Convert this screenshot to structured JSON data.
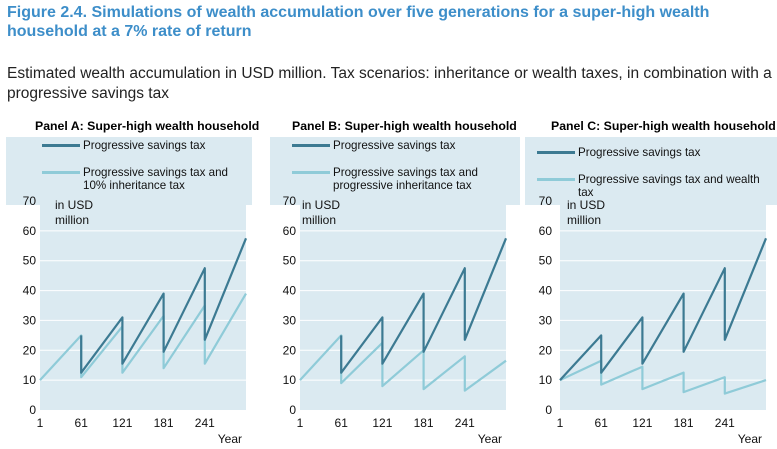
{
  "figure": {
    "title": "Figure 2.4. Simulations of wealth accumulation over five generations for a super-high wealth household at a 7% rate of return",
    "subtitle": "Estimated wealth accumulation in USD million. Tax scenarios: inheritance or wealth taxes, in combination with a progressive savings tax"
  },
  "colors": {
    "dark": "#3c7a92",
    "light": "#8fcbd8",
    "plot_bg": "#dbeaf1",
    "grid": "#ffffff"
  },
  "chart_data": [
    {
      "type": "line",
      "title": "Panel A: Super-high wealth household",
      "unit_label": [
        "in USD",
        "million"
      ],
      "xlabel": "Year",
      "ylim": [
        0,
        70
      ],
      "yticks": [
        0,
        10,
        20,
        30,
        40,
        50,
        60,
        70
      ],
      "xticks": [
        1,
        61,
        121,
        181,
        241
      ],
      "xlim": [
        1,
        301
      ],
      "series": [
        {
          "name": "Progressive savings tax",
          "color": "#3c7a92",
          "points": [
            [
              61,
              25
            ],
            [
              61,
              12.5
            ],
            [
              121,
              31
            ],
            [
              121,
              15.5
            ],
            [
              181,
              39
            ],
            [
              181,
              19.5
            ],
            [
              241,
              47.5
            ],
            [
              241,
              23.5
            ],
            [
              301,
              57.5
            ]
          ]
        },
        {
          "name": "Progressive savings tax and 10% inheritance tax",
          "color": "#8fcbd8",
          "points": [
            [
              1,
              10
            ],
            [
              61,
              25
            ],
            [
              61,
              11
            ],
            [
              121,
              28
            ],
            [
              121,
              12.5
            ],
            [
              181,
              31.5
            ],
            [
              181,
              14
            ],
            [
              241,
              35
            ],
            [
              241,
              15.5
            ],
            [
              301,
              39
            ]
          ]
        }
      ]
    },
    {
      "type": "line",
      "title": "Panel B: Super-high wealth household",
      "unit_label": [
        "in USD",
        "million"
      ],
      "xlabel": "Year",
      "ylim": [
        0,
        70
      ],
      "yticks": [
        0,
        10,
        20,
        30,
        40,
        50,
        60,
        70
      ],
      "xticks": [
        1,
        61,
        121,
        181,
        241
      ],
      "xlim": [
        1,
        301
      ],
      "series": [
        {
          "name": "Progressive savings tax",
          "color": "#3c7a92",
          "points": [
            [
              61,
              25
            ],
            [
              61,
              12.5
            ],
            [
              121,
              31
            ],
            [
              121,
              15.5
            ],
            [
              181,
              39
            ],
            [
              181,
              19.5
            ],
            [
              241,
              47.5
            ],
            [
              241,
              23.5
            ],
            [
              301,
              57.5
            ]
          ]
        },
        {
          "name": "Progressive savings tax and progressive inheritance tax",
          "color": "#8fcbd8",
          "points": [
            [
              1,
              10
            ],
            [
              61,
              25
            ],
            [
              61,
              9
            ],
            [
              121,
              22.5
            ],
            [
              121,
              8
            ],
            [
              181,
              20
            ],
            [
              181,
              7
            ],
            [
              241,
              18
            ],
            [
              241,
              6.5
            ],
            [
              301,
              16.5
            ]
          ]
        }
      ]
    },
    {
      "type": "line",
      "title": "Panel C: Super-high wealth household",
      "unit_label": [
        "in USD",
        "million"
      ],
      "xlabel": "Year",
      "ylim": [
        0,
        70
      ],
      "yticks": [
        0,
        10,
        20,
        30,
        40,
        50,
        60,
        70
      ],
      "xticks": [
        1,
        61,
        121,
        181,
        241
      ],
      "xlim": [
        1,
        301
      ],
      "series": [
        {
          "name": "Progressive savings tax",
          "color": "#3c7a92",
          "points": [
            [
              1,
              10
            ],
            [
              61,
              25
            ],
            [
              61,
              12.5
            ],
            [
              121,
              31
            ],
            [
              121,
              15.5
            ],
            [
              181,
              39
            ],
            [
              181,
              19.5
            ],
            [
              241,
              47.5
            ],
            [
              241,
              23.5
            ],
            [
              301,
              57.5
            ]
          ]
        },
        {
          "name": "Progressive savings tax and wealth tax",
          "color": "#8fcbd8",
          "points": [
            [
              1,
              10
            ],
            [
              61,
              16.5
            ],
            [
              61,
              8.5
            ],
            [
              121,
              14.5
            ],
            [
              121,
              7
            ],
            [
              181,
              12.5
            ],
            [
              181,
              6
            ],
            [
              241,
              11
            ],
            [
              241,
              5.5
            ],
            [
              301,
              10
            ]
          ]
        }
      ]
    }
  ]
}
